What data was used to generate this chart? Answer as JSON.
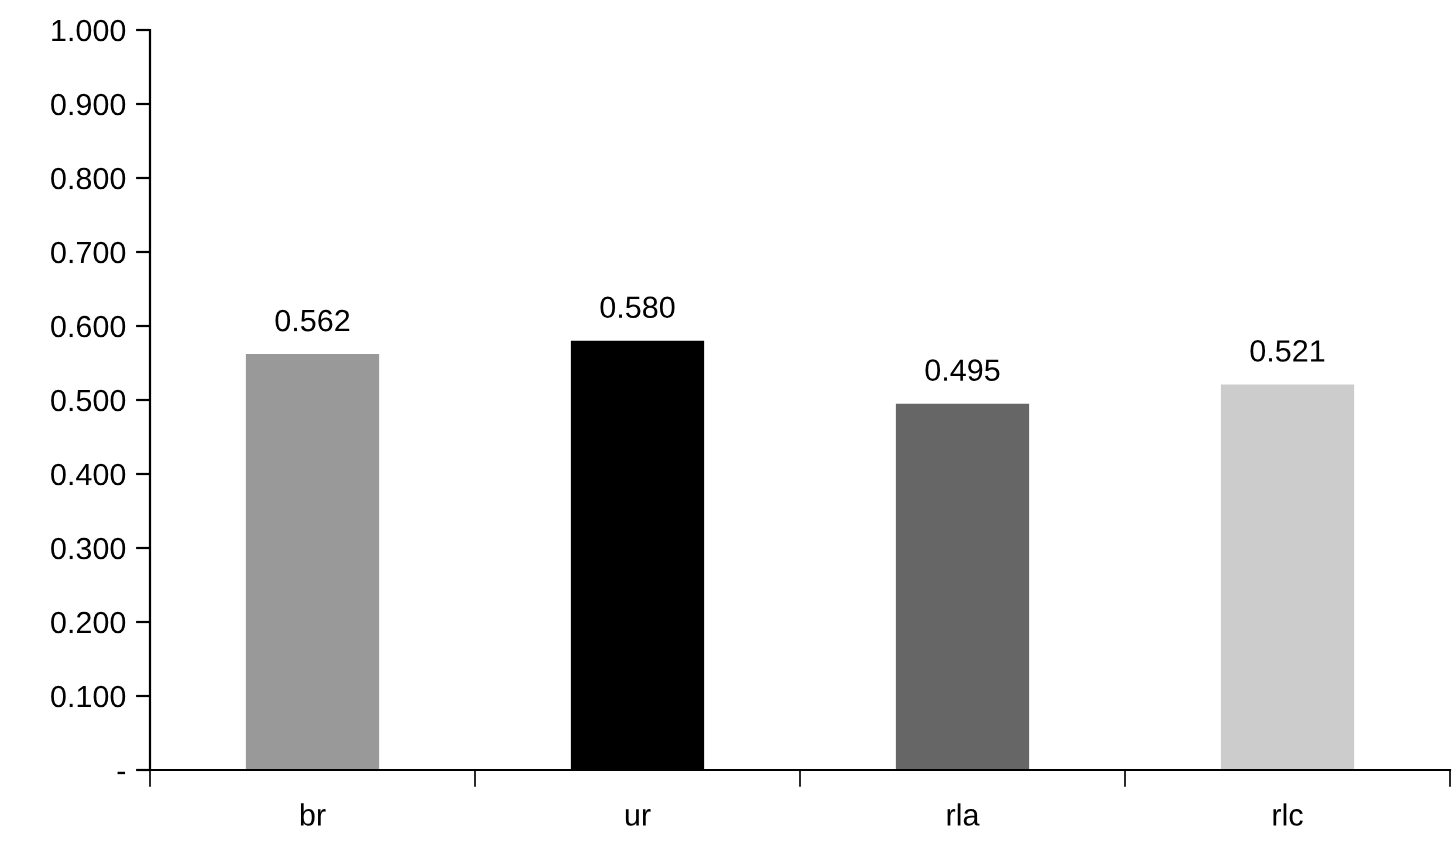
{
  "chart_data": {
    "type": "bar",
    "categories": [
      "br",
      "ur",
      "rla",
      "rlc"
    ],
    "values": [
      0.562,
      0.58,
      0.495,
      0.521
    ],
    "colors": [
      "#999999",
      "#000000",
      "#666666",
      "#cccccc"
    ],
    "value_labels": [
      "0.562",
      "0.580",
      "0.495",
      "0.521"
    ],
    "ylim": [
      0,
      1.0
    ],
    "yticks": [
      {
        "value": 0,
        "label": "-"
      },
      {
        "value": 0.1,
        "label": "0.100"
      },
      {
        "value": 0.2,
        "label": "0.200"
      },
      {
        "value": 0.3,
        "label": "0.300"
      },
      {
        "value": 0.4,
        "label": "0.400"
      },
      {
        "value": 0.5,
        "label": "0.500"
      },
      {
        "value": 0.6,
        "label": "0.600"
      },
      {
        "value": 0.7,
        "label": "0.700"
      },
      {
        "value": 0.8,
        "label": "0.800"
      },
      {
        "value": 0.9,
        "label": "0.900"
      },
      {
        "value": 1.0,
        "label": "1.000"
      }
    ],
    "grid": false,
    "legend": false
  }
}
